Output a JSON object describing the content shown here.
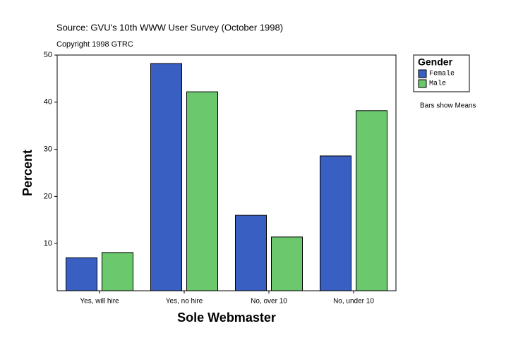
{
  "chart_data": {
    "type": "bar",
    "title": "Source: GVU's 10th WWW User Survey (October 1998)",
    "subtitle": "Copyright 1998 GTRC",
    "x_label": "Sole Webmaster",
    "y_label": "Percent",
    "categories": [
      "Yes, will hire",
      "Yes, no hire",
      "No, over 10",
      "No, under 10"
    ],
    "series": [
      {
        "name": "Female",
        "color": "#3a5fc2",
        "values": [
          7.0,
          48.2,
          16.0,
          28.6
        ]
      },
      {
        "name": "Male",
        "color": "#6cc86c",
        "values": [
          8.1,
          42.2,
          11.4,
          38.2
        ]
      }
    ],
    "legend_title": "Gender",
    "legend": "right",
    "note": "Bars show Means",
    "ylim": [
      0,
      50
    ],
    "yticks": [
      10,
      20,
      30,
      40,
      50
    ],
    "grid": false
  }
}
